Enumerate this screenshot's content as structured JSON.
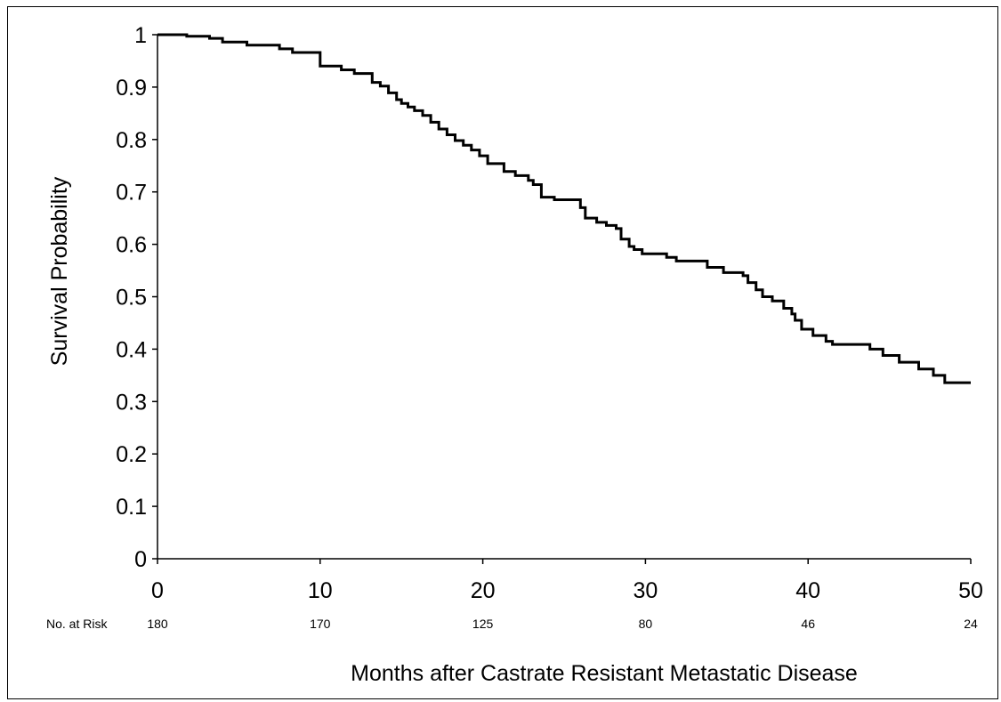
{
  "chart_data": {
    "type": "line",
    "subtype": "kaplan-meier-step",
    "ylabel": "Survival Probability",
    "xlabel": "Months after Castrate Resistant Metastatic Disease",
    "xlim": [
      0,
      50
    ],
    "ylim": [
      0,
      1
    ],
    "xticks": [
      "0",
      "10",
      "20",
      "30",
      "40",
      "50"
    ],
    "yticks": [
      "0",
      "0.1",
      "0.2",
      "0.3",
      "0.4",
      "0.5",
      "0.6",
      "0.7",
      "0.8",
      "0.9",
      "1"
    ],
    "grid": false,
    "line_color": "#000000",
    "risk_table": {
      "label": "No. at Risk",
      "x": [
        0,
        10,
        20,
        30,
        40,
        50
      ],
      "values": [
        "180",
        "170",
        "125",
        "80",
        "46",
        "24"
      ]
    },
    "series": [
      {
        "x": [
          0,
          1.8,
          3.2,
          4.0,
          5.5,
          7.5,
          8.3,
          10.0,
          11.3,
          12.1,
          13.2,
          13.7,
          14.2,
          14.7,
          15.0,
          15.4,
          15.8,
          16.3,
          16.8,
          17.3,
          17.8,
          18.3,
          18.8,
          19.3,
          19.8,
          20.3,
          21.3,
          22.0,
          22.8,
          23.1,
          23.6,
          24.4,
          26.0,
          26.3,
          27.0,
          27.6,
          28.2,
          28.5,
          29.0,
          29.3,
          29.8,
          31.3,
          31.9,
          33.8,
          34.8,
          36.0,
          36.3,
          36.8,
          37.2,
          37.8,
          38.5,
          39.0,
          39.2,
          39.6,
          40.3,
          41.1,
          41.5,
          43.8,
          44.6,
          45.6,
          46.8,
          47.7,
          48.4
        ],
        "y": [
          1.0,
          0.997,
          0.993,
          0.986,
          0.98,
          0.973,
          0.966,
          0.94,
          0.933,
          0.926,
          0.909,
          0.902,
          0.889,
          0.876,
          0.869,
          0.862,
          0.855,
          0.846,
          0.833,
          0.82,
          0.809,
          0.798,
          0.789,
          0.78,
          0.769,
          0.754,
          0.739,
          0.731,
          0.722,
          0.714,
          0.69,
          0.685,
          0.67,
          0.65,
          0.642,
          0.636,
          0.63,
          0.61,
          0.596,
          0.59,
          0.582,
          0.575,
          0.568,
          0.556,
          0.546,
          0.54,
          0.527,
          0.513,
          0.5,
          0.492,
          0.478,
          0.467,
          0.455,
          0.438,
          0.426,
          0.415,
          0.409,
          0.4,
          0.388,
          0.375,
          0.362,
          0.35,
          0.336
        ],
        "x_end": 50
      }
    ]
  }
}
